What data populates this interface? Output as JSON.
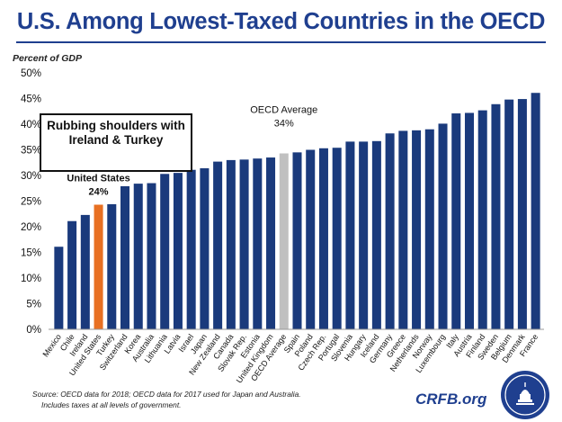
{
  "title": "U.S. Among Lowest-Taxed Countries in the OECD",
  "source_line1": "Source: OECD data for 2018; OECD data for 2017 used for Japan and Australia.",
  "source_line2": "Includes taxes at all levels of government.",
  "brand": "CRFB.org",
  "callout": {
    "title_line1": "Rubbing shoulders with",
    "title_line2": "Ireland & Turkey",
    "us_label": "United States",
    "us_value": "24%"
  },
  "oecd_annotation": {
    "label": "OECD Average",
    "value": "34%"
  },
  "colors": {
    "bar": "#1a3a7c",
    "highlight": "#e87022",
    "average": "#c0c0c0",
    "title": "#1f3f8f"
  },
  "chart_data": {
    "type": "bar",
    "ylabel": "Percent of GDP",
    "ylim": [
      0,
      50
    ],
    "yticks": [
      0,
      5,
      10,
      15,
      20,
      25,
      30,
      35,
      40,
      45,
      50
    ],
    "ytick_labels": [
      "0%",
      "5%",
      "10%",
      "15%",
      "20%",
      "25%",
      "30%",
      "35%",
      "40%",
      "45%",
      "50%"
    ],
    "grid": false,
    "categories": [
      "Mexico",
      "Chile",
      "Ireland",
      "United States",
      "Turkey",
      "Switzerland",
      "Korea",
      "Australia",
      "Lithuania",
      "Latvia",
      "Israel",
      "Japan",
      "New Zealand",
      "Canada",
      "Slovak Rep.",
      "Estonia",
      "United Kingdom",
      "OECD Average",
      "Spain",
      "Poland",
      "Czech Rep.",
      "Portugal",
      "Slovenia",
      "Hungary",
      "Iceland",
      "Germany",
      "Greece",
      "Netherlands",
      "Norway",
      "Luxembourg",
      "Italy",
      "Austria",
      "Finland",
      "Sweden",
      "Belgium",
      "Denmark",
      "France"
    ],
    "values": [
      16.1,
      21.1,
      22.3,
      24.3,
      24.4,
      27.9,
      28.4,
      28.5,
      30.3,
      30.5,
      31.1,
      31.4,
      32.7,
      33.0,
      33.1,
      33.3,
      33.5,
      34.3,
      34.5,
      35.0,
      35.3,
      35.4,
      36.6,
      36.6,
      36.7,
      38.2,
      38.7,
      38.8,
      39.0,
      40.1,
      42.1,
      42.2,
      42.7,
      43.9,
      44.8,
      44.9,
      46.1
    ],
    "highlight_index": 3,
    "average_index": 17
  }
}
